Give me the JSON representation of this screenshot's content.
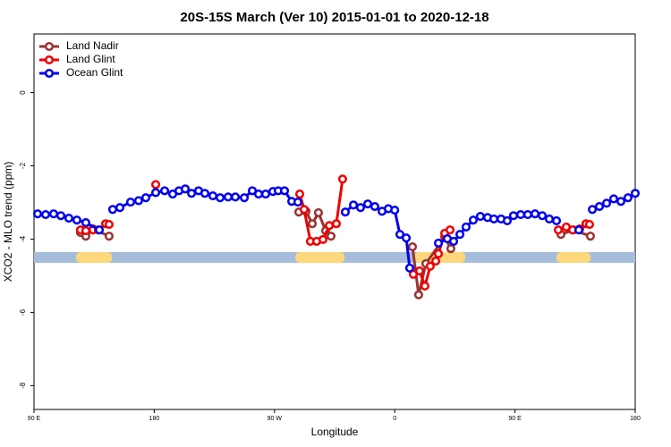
{
  "chart_data": {
    "type": "line",
    "title": "20S-15S March (Ver 10)   2015-01-01 to 2020-12-18",
    "x_label": "Longitude",
    "y_label": "XCO2 - MLO trend (ppm)",
    "xlim": [
      -270,
      180
    ],
    "xticks": [
      {
        "value": -270,
        "label": "90 E"
      },
      {
        "value": -180,
        "label": "180"
      },
      {
        "value": -90,
        "label": "90 W"
      },
      0,
      {
        "value": 90,
        "label": "90 E"
      },
      {
        "value": 180,
        "label": "180"
      }
    ],
    "ylim": [
      -8.65,
      1.6
    ],
    "yticks": [
      -8,
      -6,
      -4,
      -2,
      0
    ],
    "legend": "top-left",
    "surface_band": {
      "y": -4.5,
      "color": "#a5bdda",
      "land_color": "#fdd77b",
      "land": [
        [
          -238.5,
          -211.7
        ],
        [
          -74.4,
          -37.6
        ],
        [
          14.7,
          52.8
        ],
        [
          121,
          146.6
        ]
      ]
    },
    "series": [
      {
        "name": "Land Nadir",
        "color": "#993333",
        "x": [
          -235.2,
          -231.2,
          -225.8,
          -213.8,
          null,
          -71.8,
          -66.4,
          -61.7,
          -57.1,
          -51.7,
          -47.7,
          null,
          13.3,
          17.9,
          23.3,
          37.4,
          42,
          null,
          124.4,
          133.8,
          146.5
        ],
        "values": [
          -3.82,
          -3.92,
          -3.72,
          -3.92,
          null,
          -3.26,
          -3.24,
          -3.58,
          -3.28,
          -3.77,
          -3.92,
          null,
          -4.21,
          -5.52,
          -4.67,
          -3.94,
          -4.26,
          null,
          -3.87,
          -3.75,
          -3.92
        ]
      },
      {
        "name": "Land Glint",
        "color": "#ee0000",
        "x": [
          -235.2,
          -231.2,
          -225.8,
          -221.8,
          -216.4,
          -213.8,
          null,
          -178.9,
          null,
          -71.1,
          -67.8,
          -63.1,
          -58.4,
          -53.7,
          -49,
          -43.7,
          -39,
          null,
          13.9,
          18.6,
          22.6,
          26.6,
          30.7,
          32.7,
          37.4,
          41.4,
          null,
          122.4,
          128.4,
          133.1,
          138.5,
          143.2,
          145.8
        ],
        "values": [
          -3.75,
          -3.77,
          -3.75,
          -3.75,
          -3.58,
          -3.6,
          null,
          -2.51,
          null,
          -2.77,
          -3.19,
          -4.06,
          -4.06,
          -4.01,
          -3.63,
          -3.58,
          -2.36,
          null,
          -4.96,
          -4.87,
          -5.28,
          -4.74,
          -4.6,
          -4.4,
          -3.84,
          -3.75,
          null,
          -3.75,
          -3.67,
          -3.75,
          -3.72,
          -3.58,
          -3.6
        ]
      },
      {
        "name": "Ocean Glint",
        "color": "#0000ee",
        "x": [
          -267.3,
          -261.3,
          -255.3,
          -249.9,
          -243.9,
          -237.9,
          -231.2,
          -221.1,
          null,
          -211.1,
          -205.7,
          -197.7,
          -191.7,
          -186.3,
          -178.9,
          -172.2,
          -166.2,
          -161.5,
          -156.8,
          -152.1,
          -146.8,
          -142.1,
          -136.1,
          -130.7,
          -124.7,
          -119.3,
          -112.6,
          -106.6,
          -101.9,
          -96.6,
          -91.2,
          -87.2,
          -82.5,
          -77.1,
          -72.5,
          null,
          -37,
          -30.9,
          -25.6,
          -20.2,
          -14.9,
          -9.5,
          -4.8,
          0,
          3.9,
          8.6,
          11.2,
          null,
          32.7,
          39.4,
          44.1,
          48.8,
          53.4,
          58.8,
          64.1,
          69.5,
          74.2,
          79.6,
          84.2,
          88.9,
          94.3,
          99.6,
          105,
          110.4,
          115.7,
          121.1,
          null,
          137.8,
          null,
          147.9,
          153.2,
          158.6,
          163.9,
          169.3,
          174.6,
          180
        ],
        "values": [
          -3.31,
          -3.33,
          -3.31,
          -3.36,
          -3.43,
          -3.48,
          -3.55,
          -3.75,
          null,
          -3.19,
          -3.14,
          -2.99,
          -2.95,
          -2.87,
          -2.73,
          -2.68,
          -2.77,
          -2.68,
          -2.63,
          -2.75,
          -2.68,
          -2.75,
          -2.82,
          -2.87,
          -2.85,
          -2.85,
          -2.87,
          -2.68,
          -2.77,
          -2.77,
          -2.7,
          -2.68,
          -2.68,
          -2.97,
          -2.99,
          null,
          -3.26,
          -3.07,
          -3.14,
          -3.04,
          -3.11,
          -3.24,
          -3.17,
          -3.21,
          -3.87,
          -3.97,
          -4.79,
          null,
          -4.11,
          -3.99,
          -4.06,
          -3.87,
          -3.67,
          -3.48,
          -3.38,
          -3.41,
          -3.45,
          -3.45,
          -3.5,
          -3.36,
          -3.33,
          -3.33,
          -3.31,
          -3.36,
          -3.45,
          -3.5,
          null,
          -3.75,
          null,
          -3.19,
          -3.11,
          -3.02,
          -2.9,
          -2.97,
          -2.87,
          -2.75
        ]
      }
    ]
  }
}
